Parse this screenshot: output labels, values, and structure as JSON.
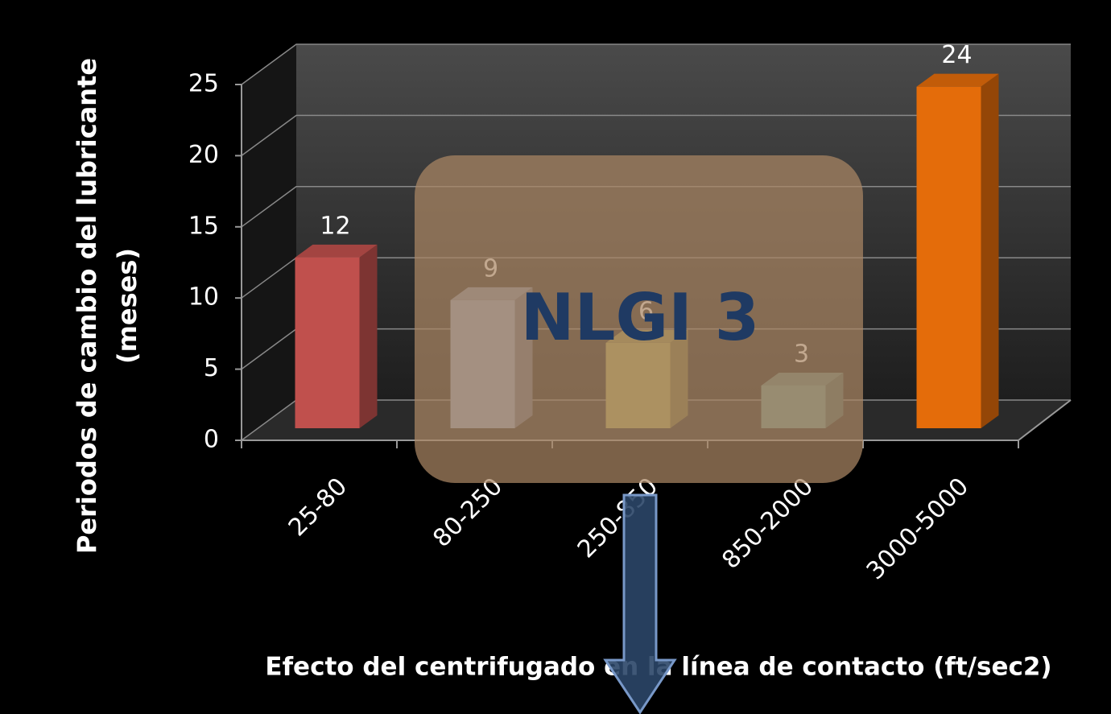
{
  "chart_data": {
    "type": "bar3d",
    "ylabel": [
      "Periodos de cambio del lubricante",
      "(meses)"
    ],
    "xlabel": "Efecto del centrifugado en la línea de contacto (ft/sec2)",
    "categories": [
      "25-80",
      "80-250",
      "250-850",
      "850-2000",
      "3000-5000"
    ],
    "values": [
      12,
      9,
      6,
      3,
      24
    ],
    "colors": [
      "#c0504d",
      "#95a8cc",
      "#b0ac5a",
      "#6a9a94",
      "#e46c0a"
    ],
    "ylim": [
      0,
      25
    ],
    "yticks": [
      0,
      5,
      10,
      15,
      20,
      25
    ],
    "grid": true,
    "annotation": "NLGI 3"
  }
}
